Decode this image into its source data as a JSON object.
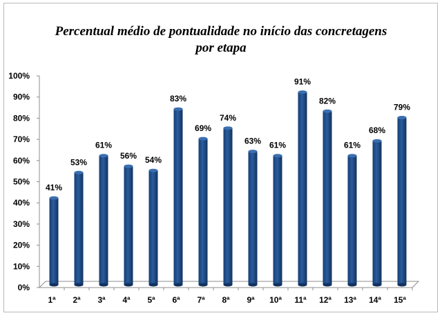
{
  "chart_data": {
    "type": "bar",
    "title_line1": "Percentual médio de pontualidade no início das concretagens",
    "title_line2": "por etapa",
    "categories": [
      "1ª",
      "2ª",
      "3ª",
      "4ª",
      "5ª",
      "6ª",
      "7ª",
      "8ª",
      "9ª",
      "10ª",
      "11ª",
      "12ª",
      "13ª",
      "14ª",
      "15ª"
    ],
    "values": [
      41,
      53,
      61,
      56,
      54,
      83,
      69,
      74,
      63,
      61,
      91,
      82,
      61,
      68,
      79
    ],
    "data_labels": [
      "41%",
      "53%",
      "61%",
      "56%",
      "54%",
      "83%",
      "69%",
      "74%",
      "63%",
      "61%",
      "91%",
      "82%",
      "61%",
      "68%",
      "79%"
    ],
    "ylim": [
      0,
      100
    ],
    "yticks": [
      "0%",
      "10%",
      "20%",
      "30%",
      "40%",
      "50%",
      "60%",
      "70%",
      "80%",
      "90%",
      "100%"
    ],
    "grid": false,
    "legend": "none",
    "bar_color": "#1f4e8c"
  }
}
